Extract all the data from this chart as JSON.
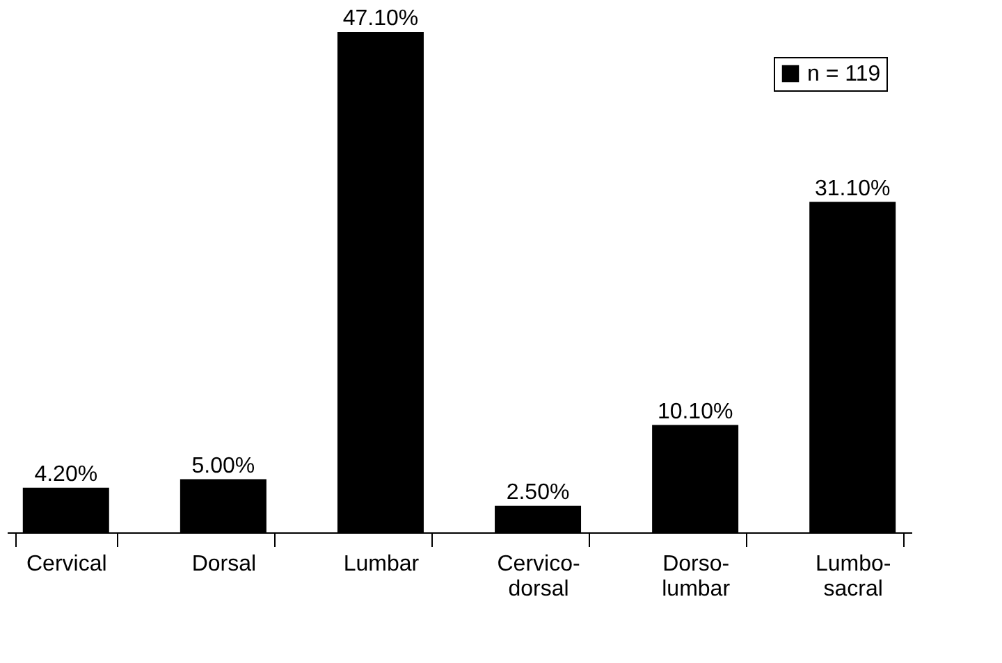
{
  "chart_data": {
    "type": "bar",
    "categories": [
      "Cervical",
      "Dorsal",
      "Lumbar",
      "Cervico-dorsal",
      "Dorso-lumbar",
      "Lumbo-sacral"
    ],
    "series": [
      {
        "name": "n = 119",
        "color": "#000000",
        "values": [
          4.2,
          5.0,
          47.1,
          2.5,
          10.1,
          31.1
        ],
        "value_labels": [
          "4.20%",
          "5.00%",
          "47.10%",
          "2.50%",
          "10.10%",
          "31.10%"
        ]
      }
    ],
    "legend": "top right",
    "grid": false
  }
}
